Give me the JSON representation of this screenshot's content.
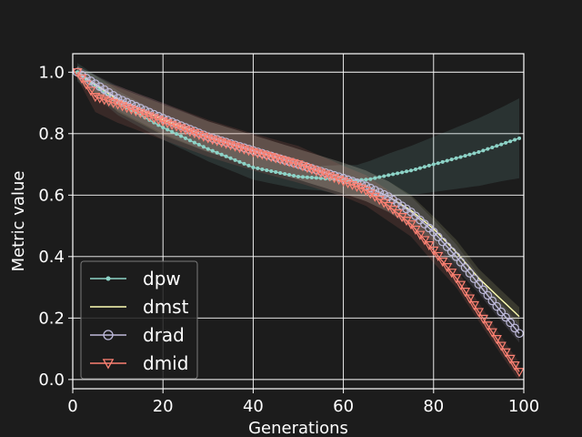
{
  "chart_data": {
    "type": "line",
    "xlabel": "Generations",
    "ylabel": "Metric value",
    "xlim": [
      0,
      100
    ],
    "ylim": [
      -0.03,
      1.06
    ],
    "xticks": [
      0,
      20,
      40,
      60,
      80,
      100
    ],
    "yticks": [
      0.0,
      0.2,
      0.4,
      0.6,
      0.8,
      1.0
    ],
    "xtick_labels": [
      "0",
      "20",
      "40",
      "60",
      "80",
      "100"
    ],
    "ytick_labels": [
      "0.0",
      "0.2",
      "0.4",
      "0.6",
      "0.8",
      "1.0"
    ],
    "grid": true,
    "legend_position": "lower-left",
    "background": "#1c1c1c",
    "series": [
      {
        "name": "dpw",
        "color": "#8dd3c7",
        "marker": "dot",
        "x": [
          1,
          10,
          20,
          30,
          40,
          45,
          50,
          55,
          60,
          63,
          66,
          70,
          75,
          80,
          85,
          90,
          95,
          99
        ],
        "y": [
          1.0,
          0.9,
          0.82,
          0.75,
          0.69,
          0.675,
          0.66,
          0.655,
          0.648,
          0.648,
          0.652,
          0.665,
          0.68,
          0.7,
          0.72,
          0.74,
          0.765,
          0.785
        ],
        "band": [
          0.03,
          0.04,
          0.04,
          0.04,
          0.04,
          0.04,
          0.04,
          0.04,
          0.05,
          0.05,
          0.06,
          0.07,
          0.08,
          0.09,
          0.1,
          0.11,
          0.12,
          0.13
        ]
      },
      {
        "name": "dmst",
        "color": "#ffffb3",
        "marker": "none",
        "x": [
          1,
          10,
          20,
          30,
          40,
          50,
          60,
          65,
          70,
          75,
          80,
          85,
          90,
          95,
          99
        ],
        "y": [
          1.0,
          0.91,
          0.845,
          0.79,
          0.745,
          0.7,
          0.655,
          0.63,
          0.595,
          0.55,
          0.49,
          0.415,
          0.33,
          0.26,
          0.205
        ],
        "band": [
          0.02,
          0.04,
          0.05,
          0.05,
          0.05,
          0.05,
          0.05,
          0.05,
          0.05,
          0.05,
          0.04,
          0.04,
          0.03,
          0.03,
          0.03
        ]
      },
      {
        "name": "drad",
        "color": "#bebada",
        "marker": "circle",
        "x": [
          1,
          10,
          20,
          30,
          40,
          50,
          60,
          65,
          70,
          75,
          80,
          85,
          90,
          95,
          99
        ],
        "y": [
          1.0,
          0.915,
          0.85,
          0.79,
          0.745,
          0.7,
          0.655,
          0.63,
          0.595,
          0.545,
          0.48,
          0.4,
          0.31,
          0.22,
          0.15
        ],
        "band": [
          0.02,
          0.04,
          0.05,
          0.05,
          0.05,
          0.05,
          0.05,
          0.05,
          0.05,
          0.05,
          0.04,
          0.04,
          0.03,
          0.03,
          0.03
        ]
      },
      {
        "name": "dmid",
        "color": "#fb8072",
        "marker": "triangle-down",
        "x": [
          1,
          5,
          10,
          20,
          30,
          40,
          50,
          60,
          65,
          70,
          75,
          80,
          85,
          90,
          95,
          99
        ],
        "y": [
          1.0,
          0.92,
          0.895,
          0.84,
          0.785,
          0.74,
          0.7,
          0.645,
          0.615,
          0.565,
          0.505,
          0.42,
          0.33,
          0.22,
          0.11,
          0.025
        ],
        "band": [
          0.02,
          0.05,
          0.06,
          0.06,
          0.06,
          0.06,
          0.06,
          0.05,
          0.05,
          0.05,
          0.04,
          0.04,
          0.03,
          0.03,
          0.03,
          0.03
        ]
      }
    ]
  }
}
